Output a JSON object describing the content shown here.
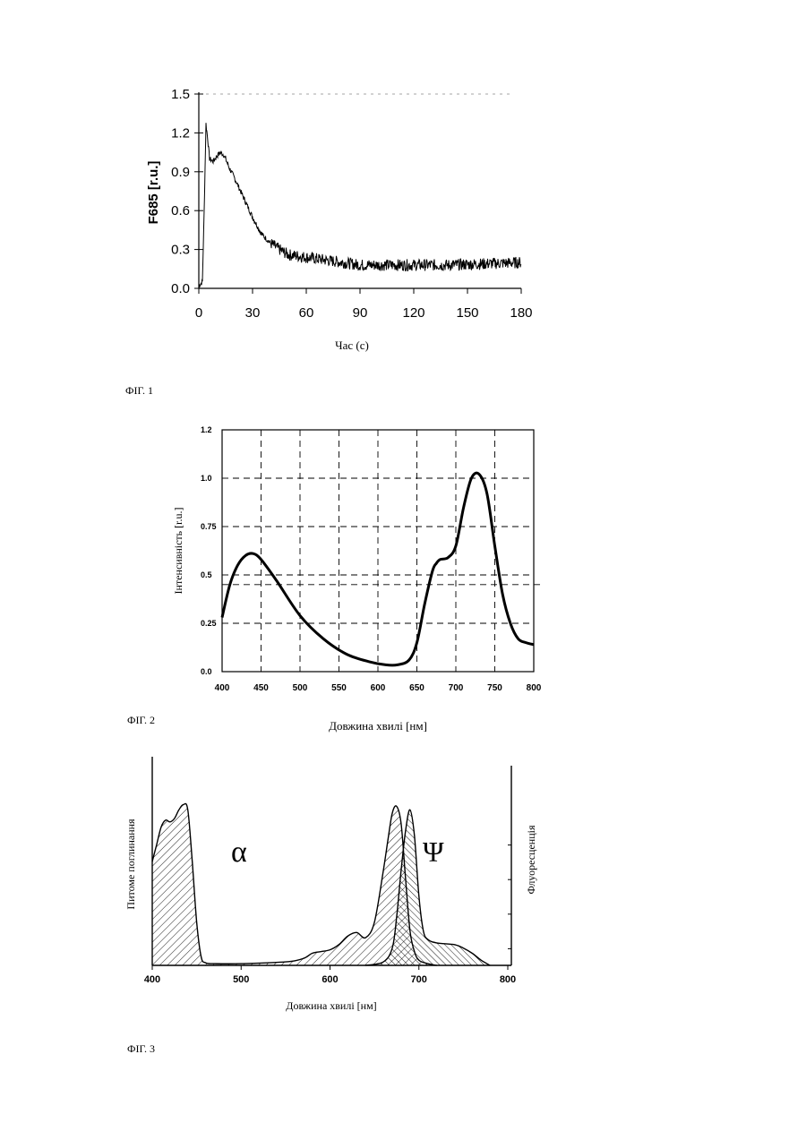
{
  "chart_data": [
    {
      "type": "line",
      "figure_label": "ФІГ.  1",
      "xlabel": "Час (с)",
      "ylabel": "F685 [r.u.]",
      "xlim": [
        0,
        180
      ],
      "ylim": [
        0,
        1.5
      ],
      "xticks": [
        "0",
        "30",
        "60",
        "90",
        "120",
        "150",
        "180"
      ],
      "yticks": [
        "0.0",
        "0.3",
        "0.6",
        "0.9",
        "1.2",
        "1.5"
      ],
      "series": [
        {
          "x": [
            0,
            2,
            3,
            4,
            5,
            6,
            8,
            10,
            12,
            14,
            17,
            20,
            25,
            30,
            35,
            40,
            45,
            50,
            60,
            70,
            80,
            90,
            100,
            120,
            140,
            160,
            180
          ],
          "y": [
            0.02,
            0.05,
            0.6,
            1.27,
            1.15,
            1.0,
            0.98,
            1.02,
            1.05,
            1.03,
            0.93,
            0.85,
            0.7,
            0.55,
            0.42,
            0.35,
            0.3,
            0.26,
            0.24,
            0.22,
            0.2,
            0.18,
            0.18,
            0.18,
            0.18,
            0.19,
            0.2
          ],
          "noise": 0.035
        }
      ],
      "grid": false
    },
    {
      "type": "line",
      "figure_label": "ФІГ.  2",
      "xlabel": "Довжина хвилі [нм]",
      "ylabel": "Інтенсивність [r.u.]",
      "xlim": [
        400,
        800
      ],
      "ylim": [
        0,
        1.25
      ],
      "xticks": [
        "400",
        "450",
        "500",
        "550",
        "600",
        "650",
        "700",
        "750",
        "800"
      ],
      "yticks": [
        "0.0",
        "0.25",
        "0.5",
        "0.75",
        "1.0",
        "1.2"
      ],
      "ytick_values": [
        0,
        0.25,
        0.5,
        0.75,
        1.0,
        1.25
      ],
      "grid": true,
      "hline": 0.45,
      "series": [
        {
          "x": [
            400,
            410,
            420,
            430,
            440,
            450,
            470,
            500,
            530,
            560,
            590,
            610,
            625,
            640,
            650,
            660,
            670,
            675,
            680,
            690,
            700,
            710,
            720,
            730,
            740,
            750,
            760,
            770,
            780,
            790,
            800
          ],
          "y": [
            0.28,
            0.45,
            0.55,
            0.6,
            0.61,
            0.58,
            0.47,
            0.29,
            0.17,
            0.09,
            0.05,
            0.035,
            0.035,
            0.06,
            0.15,
            0.35,
            0.52,
            0.56,
            0.58,
            0.59,
            0.65,
            0.85,
            1.0,
            1.02,
            0.92,
            0.65,
            0.4,
            0.25,
            0.17,
            0.15,
            0.14
          ]
        }
      ]
    },
    {
      "type": "area",
      "figure_label": "ФІГ.  3",
      "xlabel": "Довжина хвилі [нм]",
      "ylabel": "Питоме поглинання",
      "ylabel_right": "Флуоресценція",
      "xlim": [
        400,
        800
      ],
      "xticks": [
        "400",
        "500",
        "600",
        "700",
        "800"
      ],
      "ylim": [
        0,
        1
      ],
      "series": [
        {
          "name": "α",
          "x": [
            400,
            405,
            410,
            415,
            420,
            425,
            430,
            435,
            440,
            445,
            450,
            455,
            460,
            470,
            500,
            550,
            570,
            580,
            590,
            600,
            610,
            620,
            630,
            640,
            650,
            660,
            665,
            670,
            675,
            680,
            685,
            690,
            695,
            700,
            710,
            720
          ],
          "y": [
            0.6,
            0.7,
            0.8,
            0.84,
            0.83,
            0.85,
            0.9,
            0.93,
            0.9,
            0.6,
            0.25,
            0.05,
            0.015,
            0.01,
            0.01,
            0.02,
            0.04,
            0.07,
            0.08,
            0.09,
            0.12,
            0.17,
            0.19,
            0.16,
            0.25,
            0.55,
            0.72,
            0.88,
            0.92,
            0.82,
            0.5,
            0.2,
            0.08,
            0.03,
            0.01,
            0.0
          ]
        },
        {
          "name": "Ψ",
          "x": [
            640,
            660,
            670,
            675,
            680,
            685,
            690,
            695,
            700,
            705,
            710,
            720,
            740,
            750,
            760,
            770,
            780
          ],
          "y": [
            0.0,
            0.02,
            0.1,
            0.28,
            0.55,
            0.78,
            0.9,
            0.75,
            0.4,
            0.2,
            0.15,
            0.13,
            0.12,
            0.1,
            0.07,
            0.03,
            0.0
          ]
        }
      ]
    }
  ]
}
